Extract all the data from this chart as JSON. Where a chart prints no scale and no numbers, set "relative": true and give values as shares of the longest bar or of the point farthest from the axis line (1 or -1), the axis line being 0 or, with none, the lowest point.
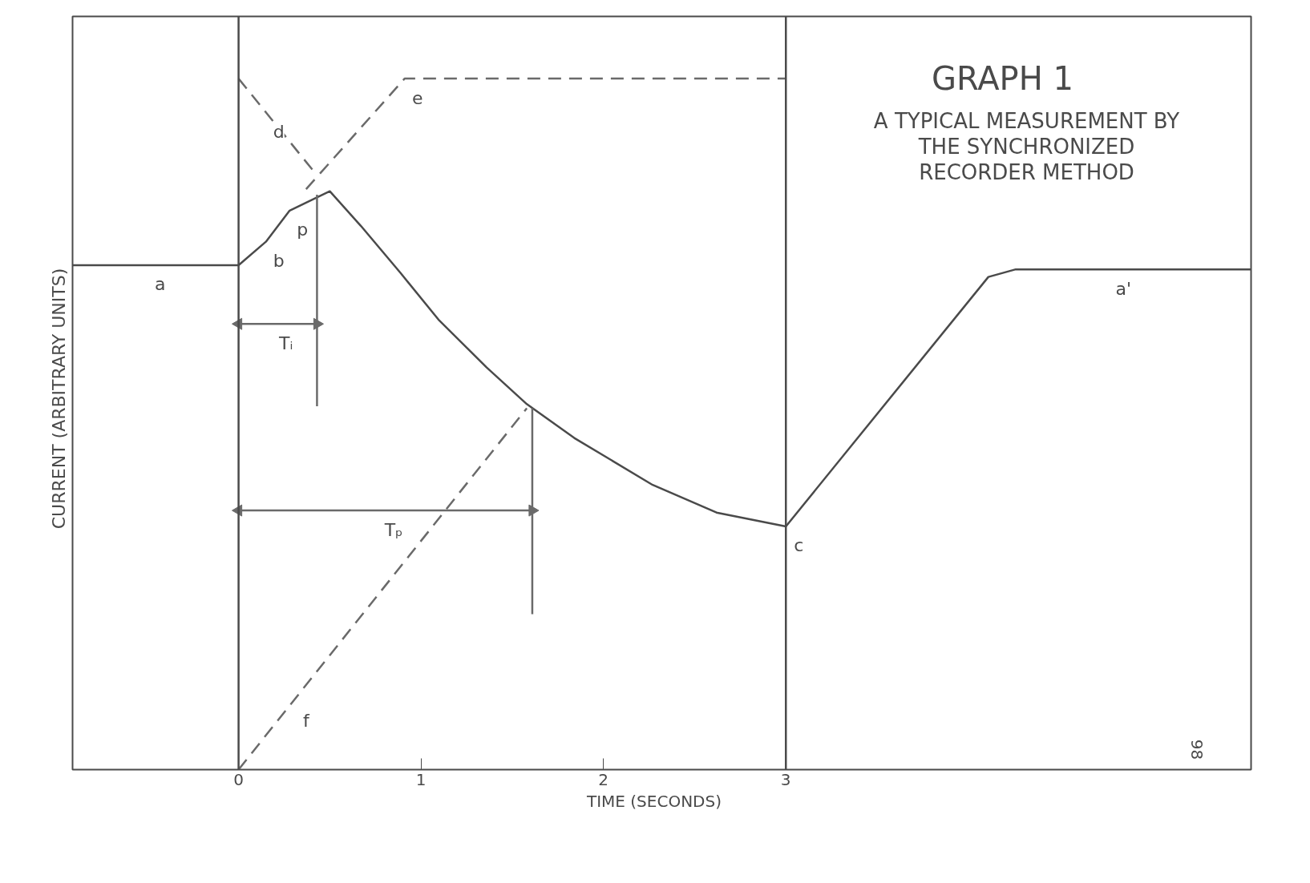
{
  "chart_data": {
    "type": "line",
    "title": "GRAPH 1",
    "subtitle": "A TYPICAL MEASUREMENT BY THE SYNCHRONIZED RECORDER METHOD",
    "xlabel": "TIME    (SECONDS)",
    "ylabel": "CURRENT   (ARBITRARY UNITS)",
    "relative": true,
    "xlim": [
      -0.91,
      5.55
    ],
    "xticks": [
      0,
      1,
      2,
      3
    ],
    "grid": false,
    "marker": "none",
    "series": [
      {
        "color": "#4a4a4a",
        "line_style": "solid",
        "x": [
          -0.91,
          0,
          0.15,
          0.28,
          0.5,
          0.67,
          0.89,
          1.1,
          1.36,
          1.58,
          1.84,
          2.27,
          2.62,
          3.0,
          4.11,
          4.26,
          5.55
        ],
        "values": [
          0.73,
          0.73,
          0.764,
          0.809,
          0.837,
          0.787,
          0.718,
          0.65,
          0.582,
          0.529,
          0.48,
          0.412,
          0.372,
          0.352,
          0.713,
          0.724,
          0.724
        ]
      },
      {
        "color": "#6a6a6a",
        "line_style": "dashed",
        "x": [
          0,
          0.43
        ],
        "values": [
          1.0,
          0.86
        ]
      },
      {
        "color": "#6a6a6a",
        "line_style": "dashed",
        "x": [
          0.37,
          0.91,
          3.0
        ],
        "values": [
          0.84,
          1.0,
          1.0
        ]
      },
      {
        "color": "#6a6a6a",
        "line_style": "dashed",
        "x": [
          0,
          1.58
        ],
        "values": [
          0,
          0.523
        ]
      },
      {
        "color": "#6a6a6a",
        "line_style": "solid",
        "x": [
          0.43,
          0.43
        ],
        "values": [
          0.832,
          0.526
        ]
      },
      {
        "color": "#6a6a6a",
        "line_style": "solid",
        "x": [
          1.61,
          1.61
        ],
        "values": [
          0.523,
          0.225
        ]
      },
      {
        "color": "#6a6a6a",
        "line_style": "solid",
        "marker": "triangle",
        "x": [
          0,
          0.43
        ],
        "values": [
          0.645,
          0.645
        ]
      },
      {
        "color": "#6a6a6a",
        "line_style": "solid",
        "marker": "triangle",
        "x": [
          0,
          1.61
        ],
        "values": [
          0.375,
          0.375
        ]
      }
    ],
    "ref_lines": [
      {
        "axis": "x",
        "value": 0,
        "color": "#4a4a4a"
      },
      {
        "axis": "x",
        "value": 3,
        "color": "#4a4a4a"
      }
    ],
    "annotations": [
      {
        "text": "a",
        "x": -0.5,
        "y": 0.73
      },
      {
        "text": "b",
        "x": 0.15,
        "y": 0.764
      },
      {
        "text": "p",
        "x": 0.28,
        "y": 0.809
      },
      {
        "text": "d",
        "x": 0.15,
        "y": 0.951
      },
      {
        "text": "e",
        "x": 0.91,
        "y": 1.0
      },
      {
        "text": "f",
        "x": 0.3,
        "y": 0.099
      },
      {
        "text": "c",
        "x": 3.0,
        "y": 0.352
      },
      {
        "text": "a'",
        "x": 4.78,
        "y": 0.724
      },
      {
        "text": "Tᵢ",
        "x": 0.19,
        "y": 0.645
      },
      {
        "text": "Tₚ",
        "x": 0.78,
        "y": 0.375
      },
      "98"
    ]
  }
}
